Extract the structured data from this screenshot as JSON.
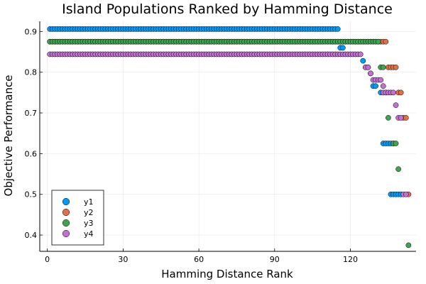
{
  "chart_data": {
    "type": "scatter",
    "title": "Island Populations Ranked by Hamming Distance",
    "xlabel": "Hamming Distance Rank",
    "ylabel": "Objective Performance",
    "xlim": [
      -3,
      146
    ],
    "ylim": [
      0.36,
      0.925
    ],
    "xticks": [
      0,
      30,
      60,
      90,
      120
    ],
    "yticks": [
      0.4,
      0.5,
      0.6,
      0.7,
      0.8,
      0.9
    ],
    "grid": true,
    "legend_position": "bottom-left",
    "series": [
      {
        "name": "y1",
        "color": "#009AFA",
        "segments": [
          {
            "from": 1,
            "to": 115,
            "y": 0.906
          },
          {
            "from": 116,
            "to": 117,
            "y": 0.86
          }
        ],
        "points": [
          [
            125,
            0.828
          ],
          [
            126,
            0.812
          ],
          [
            127,
            0.812
          ],
          [
            128,
            0.797
          ],
          [
            129,
            0.766
          ],
          [
            130,
            0.766
          ],
          [
            132,
            0.75
          ],
          [
            133,
            0.625
          ],
          [
            134,
            0.625
          ],
          [
            135,
            0.625
          ],
          [
            136,
            0.625
          ],
          [
            137,
            0.625
          ],
          [
            136,
            0.5
          ],
          [
            137,
            0.5
          ],
          [
            138,
            0.5
          ],
          [
            139,
            0.5
          ],
          [
            140,
            0.5
          ]
        ]
      },
      {
        "name": "y2",
        "color": "#E26F46",
        "segments": [
          {
            "from": 1,
            "to": 134,
            "y": 0.875
          }
        ],
        "points": [
          [
            135,
            0.812
          ],
          [
            136,
            0.812
          ],
          [
            137,
            0.812
          ],
          [
            138,
            0.812
          ],
          [
            139,
            0.75
          ],
          [
            140,
            0.75
          ],
          [
            141,
            0.688
          ],
          [
            142,
            0.688
          ],
          [
            143,
            0.5
          ]
        ]
      },
      {
        "name": "y3",
        "color": "#3EA44E",
        "segments": [
          {
            "from": 1,
            "to": 131,
            "y": 0.875
          }
        ],
        "points": [
          [
            132,
            0.812
          ],
          [
            133,
            0.812
          ],
          [
            134,
            0.75
          ],
          [
            135,
            0.688
          ],
          [
            137,
            0.625
          ],
          [
            138,
            0.625
          ],
          [
            139,
            0.562
          ],
          [
            143,
            0.375
          ]
        ]
      },
      {
        "name": "y4",
        "color": "#C271D2",
        "segments": [
          {
            "from": 1,
            "to": 122,
            "y": 0.844
          },
          {
            "from": 123,
            "to": 124,
            "y": 0.844
          }
        ],
        "points": [
          [
            126,
            0.812
          ],
          [
            127,
            0.812
          ],
          [
            128,
            0.797
          ],
          [
            129,
            0.781
          ],
          [
            130,
            0.781
          ],
          [
            131,
            0.781
          ],
          [
            132,
            0.781
          ],
          [
            133,
            0.766
          ],
          [
            133,
            0.75
          ],
          [
            134,
            0.75
          ],
          [
            135,
            0.75
          ],
          [
            136,
            0.75
          ],
          [
            137,
            0.75
          ],
          [
            138,
            0.719
          ],
          [
            139,
            0.688
          ],
          [
            140,
            0.688
          ],
          [
            141,
            0.5
          ],
          [
            142,
            0.5
          ]
        ]
      }
    ]
  }
}
